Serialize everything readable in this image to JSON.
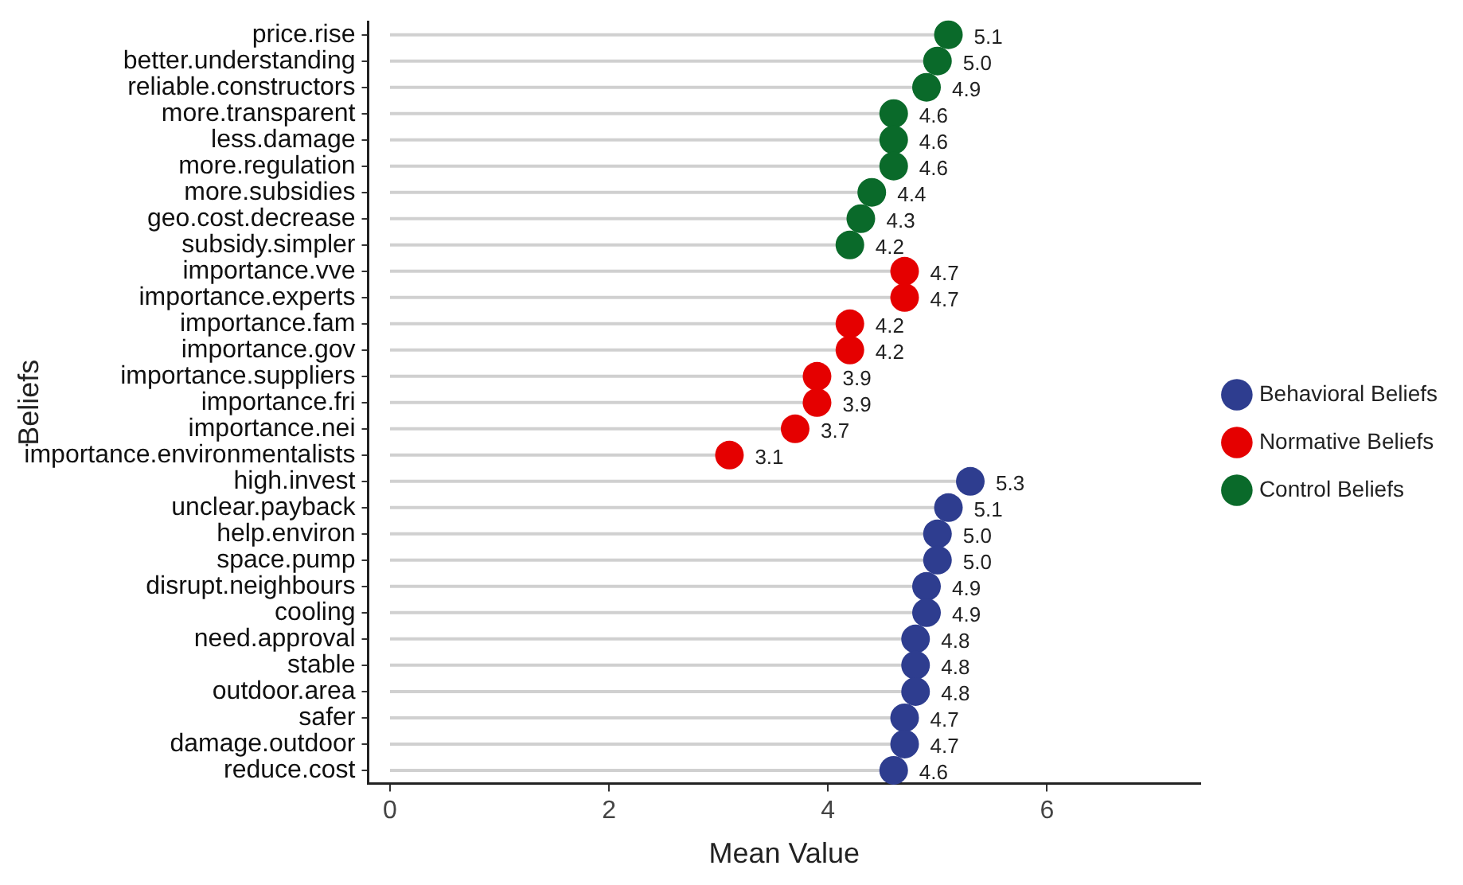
{
  "chart_data": {
    "type": "lollipop",
    "orientation": "horizontal",
    "xlabel": "Mean Value",
    "ylabel": "Beliefs",
    "legend": "right",
    "marker": "circle",
    "categories": [
      "price.rise",
      "better.understanding",
      "reliable.constructors",
      "more.transparent",
      "less.damage",
      "more.regulation",
      "more.subsidies",
      "geo.cost.decrease",
      "subsidy.simpler",
      "importance.vve",
      "importance.experts",
      "importance.fam",
      "importance.gov",
      "importance.suppliers",
      "importance.fri",
      "importance.nei",
      "importance.environmentalists",
      "high.invest",
      "unclear.payback",
      "help.environ",
      "space.pump",
      "disrupt.neighbours",
      "cooling",
      "need.approval",
      "stable",
      "outdoor.area",
      "safer",
      "damage.outdoor",
      "reduce.cost"
    ],
    "xlim": [
      -0.2,
      7.4
    ],
    "xticks": [
      0,
      2,
      4,
      6
    ],
    "series": [
      {
        "name": "Behavioral Beliefs",
        "color": "#2e3d8f",
        "values": [
          null,
          null,
          null,
          null,
          null,
          null,
          null,
          null,
          null,
          null,
          null,
          null,
          null,
          null,
          null,
          null,
          null,
          5.3,
          5.1,
          5.0,
          5.0,
          4.9,
          4.9,
          4.8,
          4.8,
          4.8,
          4.7,
          4.7,
          4.6
        ],
        "value_labels": [
          null,
          null,
          null,
          null,
          null,
          null,
          null,
          null,
          null,
          null,
          null,
          null,
          null,
          null,
          null,
          null,
          null,
          "5.3",
          "5.1",
          "5.0",
          "5.0",
          "4.9",
          "4.9",
          "4.8",
          "4.8",
          "4.8",
          "4.7",
          "4.7",
          "4.6"
        ]
      },
      {
        "name": "Normative Beliefs",
        "color": "#e50000",
        "values": [
          null,
          null,
          null,
          null,
          null,
          null,
          null,
          null,
          null,
          4.7,
          4.7,
          4.2,
          4.2,
          3.9,
          3.9,
          3.7,
          3.1,
          null,
          null,
          null,
          null,
          null,
          null,
          null,
          null,
          null,
          null,
          null,
          null
        ],
        "value_labels": [
          null,
          null,
          null,
          null,
          null,
          null,
          null,
          null,
          null,
          "4.7",
          "4.7",
          "4.2",
          "4.2",
          "3.9",
          "3.9",
          "3.7",
          "3.1",
          null,
          null,
          null,
          null,
          null,
          null,
          null,
          null,
          null,
          null,
          null,
          null
        ]
      },
      {
        "name": "Control Beliefs",
        "color": "#0a6a2a",
        "values": [
          5.1,
          5.0,
          4.9,
          4.6,
          4.6,
          4.6,
          4.4,
          4.3,
          4.2,
          null,
          null,
          null,
          null,
          null,
          null,
          null,
          null,
          null,
          null,
          null,
          null,
          null,
          null,
          null,
          null,
          null,
          null,
          null,
          null
        ],
        "value_labels": [
          "5.1",
          "5.0",
          "4.9",
          "4.6",
          "4.6",
          "4.6",
          "4.4",
          "4.3",
          "4.2",
          null,
          null,
          null,
          null,
          null,
          null,
          null,
          null,
          null,
          null,
          null,
          null,
          null,
          null,
          null,
          null,
          null,
          null,
          null,
          null
        ]
      }
    ]
  }
}
